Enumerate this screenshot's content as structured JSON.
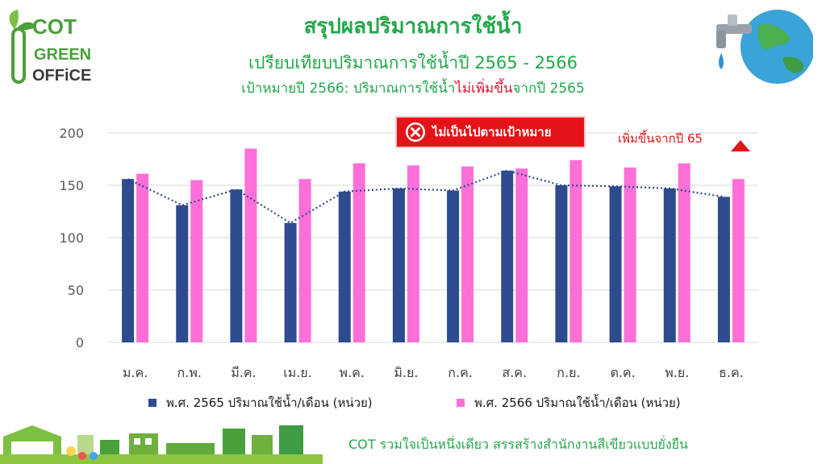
{
  "logo": {
    "line1": "COT",
    "line2": "GREEN",
    "line3": "OFFiCE"
  },
  "title": "สรุปผลปริมาณการใช้น้ำ",
  "subtitle": "เปรียบเทียบปริมาณการใช้น้ำปี 2565 - 2566",
  "target": {
    "prefix": "เป้าหมายปี 2566: ปริมาณการใช้น้ำ",
    "highlight": "ไม่เพิ่มขึ้น",
    "suffix": "จากปี 2565"
  },
  "badge": {
    "icon": "x-circle-icon",
    "text": "ไม่เป็นไปตามเป้าหมาย"
  },
  "note": {
    "text": "เพิ่มขึ้นจากปี 65",
    "icon": "triangle-up-icon"
  },
  "footer": "COT รวมใจเป็นหนึ่งเดียว สรรสร้างสำนักงานสีเขียวแบบยั่งยืน",
  "colors": {
    "series_2565": "#2f4b8f",
    "series_2566": "#ff6fd8",
    "title_green": "#22a84a",
    "alert_red": "#e31318"
  },
  "chart_data": {
    "type": "bar",
    "categories": [
      "ม.ค.",
      "ก.พ.",
      "มี.ค.",
      "เม.ย.",
      "พ.ค.",
      "มิ.ย.",
      "ก.ค.",
      "ส.ค.",
      "ก.ย.",
      "ต.ค.",
      "พ.ย.",
      "ธ.ค."
    ],
    "series": [
      {
        "name": "พ.ศ. 2565 ปริมาณใช้น้ำ/เดือน (หน่วย)",
        "values": [
          156,
          131,
          146,
          114,
          144,
          147,
          145,
          164,
          150,
          149,
          147,
          139
        ]
      },
      {
        "name": "พ.ศ. 2566 ปริมาณใช้น้ำ/เดือน (หน่วย)",
        "values": [
          161,
          155,
          185,
          156,
          171,
          169,
          168,
          166,
          174,
          167,
          171,
          156
        ]
      }
    ],
    "trendline": {
      "series": "พ.ศ. 2565 ปริมาณใช้น้ำ/เดือน (หน่วย)",
      "style": "dotted"
    },
    "ylim": [
      0,
      200
    ],
    "yticks": [
      0,
      50,
      100,
      150,
      200
    ],
    "grid": true,
    "legend": "bottom"
  }
}
